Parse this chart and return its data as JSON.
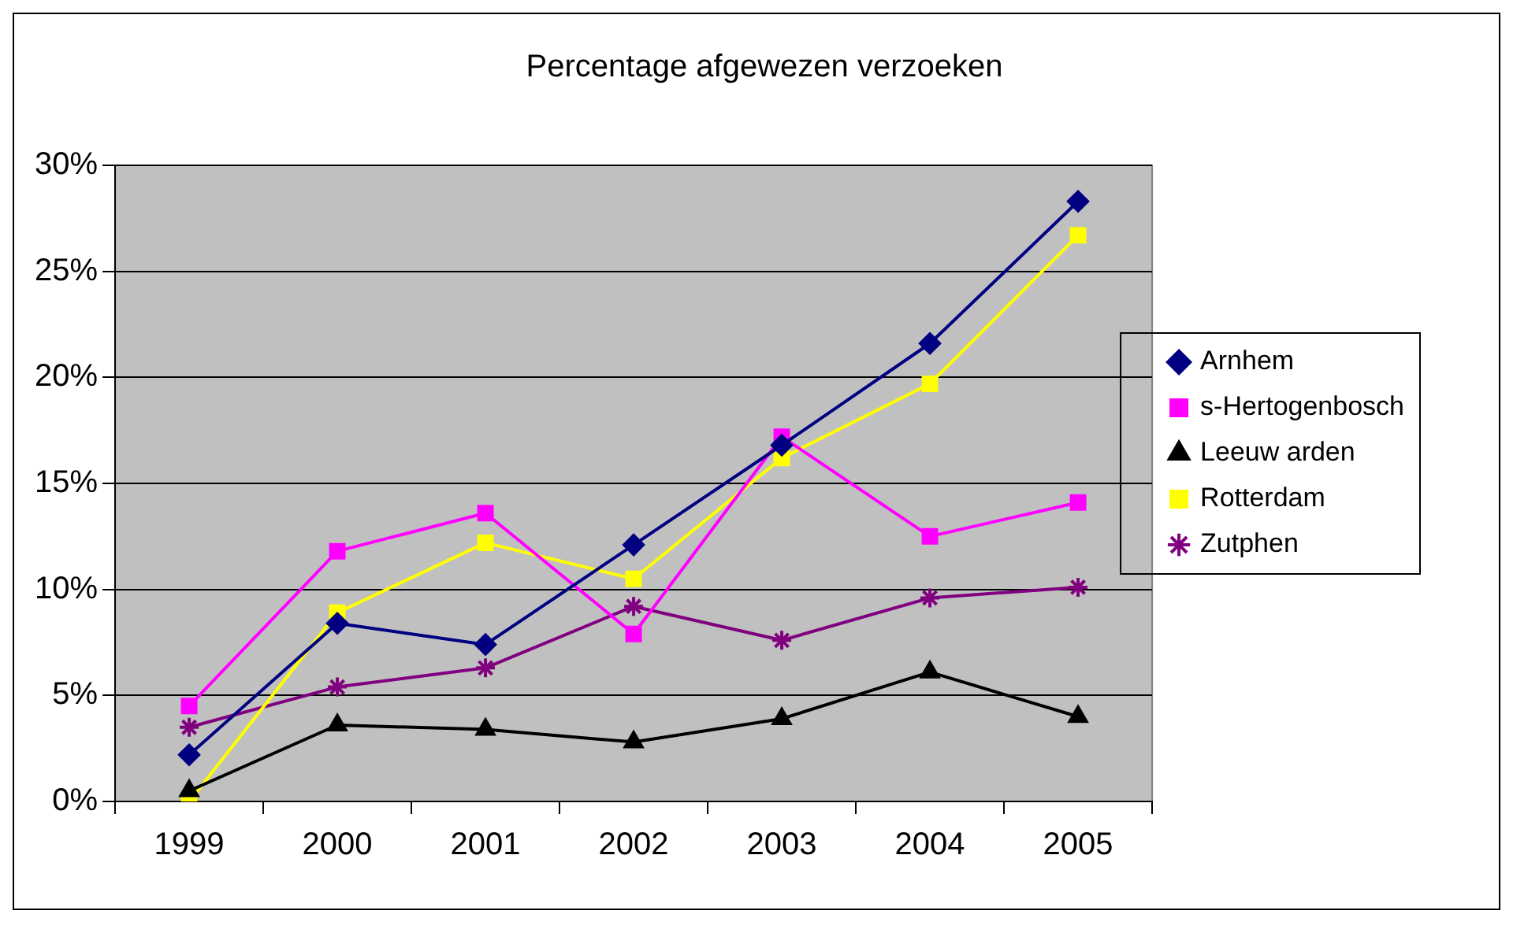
{
  "chart_data": {
    "type": "line",
    "title": "Percentage afgewezen verzoeken",
    "categories": [
      "1999",
      "2000",
      "2001",
      "2002",
      "2003",
      "2004",
      "2005"
    ],
    "series": [
      {
        "name": "Arnhem",
        "color": "#000080",
        "marker": "diamond",
        "values": [
          2.2,
          8.4,
          7.4,
          12.1,
          16.8,
          21.6,
          28.3
        ]
      },
      {
        "name": "s-Hertogenbosch",
        "color": "#ff00ff",
        "marker": "square",
        "values": [
          4.5,
          11.8,
          13.6,
          7.9,
          17.2,
          12.5,
          14.1
        ]
      },
      {
        "name": "Leeuw arden",
        "color": "#000000",
        "marker": "triangle",
        "values": [
          0.5,
          3.6,
          3.4,
          2.8,
          3.9,
          6.1,
          4.0
        ]
      },
      {
        "name": "Rotterdam",
        "color": "#ffff00",
        "marker": "square",
        "values": [
          0,
          8.9,
          12.2,
          10.5,
          16.2,
          19.7,
          26.7
        ]
      },
      {
        "name": "Zutphen",
        "color": "#800080",
        "marker": "cross",
        "values": [
          3.5,
          5.4,
          6.3,
          9.2,
          7.6,
          9.6,
          10.1
        ]
      }
    ],
    "ylim": [
      0,
      30
    ],
    "yticks": [
      {
        "value": 0,
        "label": "0%"
      },
      {
        "value": 5,
        "label": "5%"
      },
      {
        "value": 10,
        "label": "10%"
      },
      {
        "value": 15,
        "label": "15%"
      },
      {
        "value": 20,
        "label": "20%"
      },
      {
        "value": 25,
        "label": "25%"
      },
      {
        "value": 30,
        "label": "30%"
      }
    ],
    "grid": "y",
    "legend": "right",
    "line_style": "solid"
  }
}
